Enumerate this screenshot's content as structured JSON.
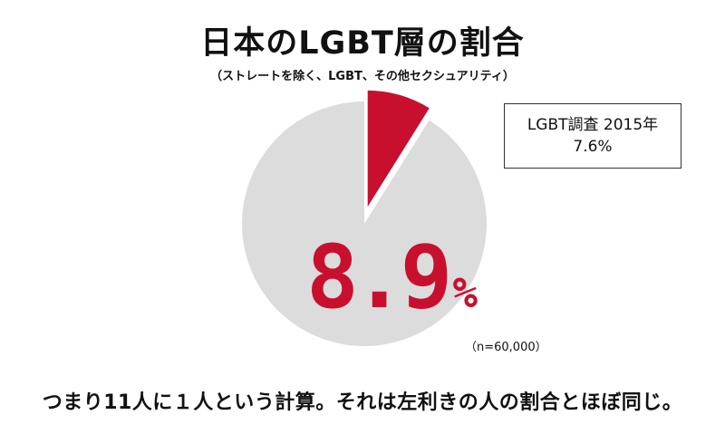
{
  "header": {
    "title": "日本のLGBT層の割合",
    "subtitle": "（ストレートを除く、LGBT、その他セクシュアリティ）"
  },
  "colors": {
    "highlight": "#c8102e",
    "remainder": "#dcdcdc"
  },
  "chart_data": {
    "type": "pie",
    "title": "日本のLGBT層の割合",
    "subtitle": "（ストレートを除く、LGBT、その他セクシュアリティ）",
    "slices": [
      {
        "label": "LGBT層",
        "value": 8.9,
        "color": "#c8102e",
        "exploded": true
      },
      {
        "label": "",
        "value": 91.1,
        "color": "#dcdcdc",
        "exploded": false
      }
    ],
    "data_label": {
      "number": "8.9",
      "unit": "%"
    },
    "sample_size": "（n=60,000）"
  },
  "note": {
    "line1": "LGBT調査 2015年",
    "line2": "7.6%"
  },
  "footer": "つまり11人に１人という計算。それは左利きの人の割合とほぼ同じ。"
}
